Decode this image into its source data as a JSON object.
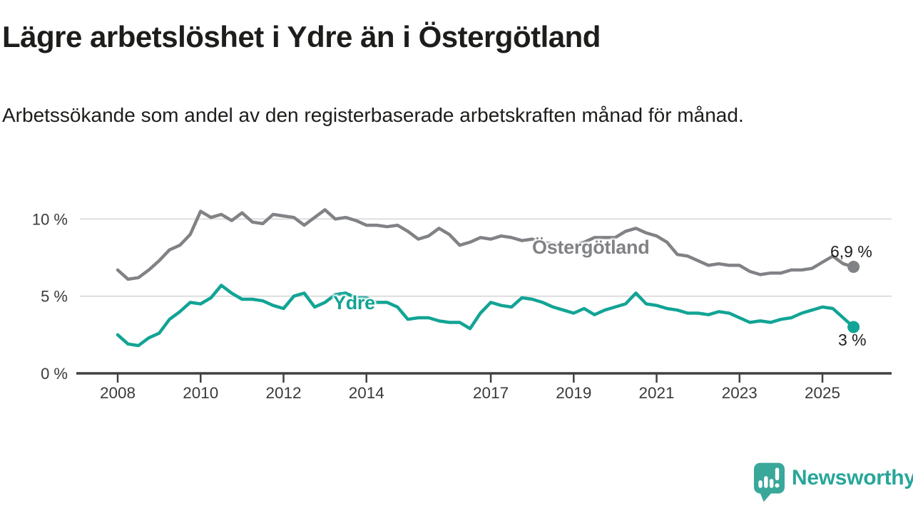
{
  "header": {
    "title": "Lägre arbetslöshet i Ydre än i Östergötland",
    "subtitle": "Arbetssökande som andel av den registerbaserade arbetskraften månad för månad."
  },
  "footer": {
    "logo_text": "Newsworthy"
  },
  "colors": {
    "ostergotland_line": "#808285",
    "ydre_line": "#12a495",
    "axis": "#414141",
    "grid": "#dedede",
    "tick_text": "#3a3a3a",
    "logo_teal": "#3aa79b"
  },
  "chart_data": {
    "type": "line",
    "title": "Lägre arbetslöshet i Ydre än i Östergötland",
    "xlabel": "",
    "ylabel": "Arbetssökande som andel av den registerbaserade arbetskraften",
    "unit": "%",
    "grid": "horizontal-only",
    "legend": "inline-labels-on-lines",
    "x_start": 2008.0,
    "x_step": 0.25,
    "xlim": [
      2007.0,
      2026.7
    ],
    "ylim": [
      0,
      11.5
    ],
    "x_ticks": [
      2008,
      2010,
      2012,
      2014,
      2017,
      2019,
      2021,
      2023,
      2025
    ],
    "x_tick_labels": [
      "2008",
      "2010",
      "2012",
      "2014",
      "2017",
      "2019",
      "2021",
      "2023",
      "2025"
    ],
    "y_ticks": [
      0,
      5,
      10
    ],
    "y_tick_labels": [
      "0 %",
      "5 %",
      "10 %"
    ],
    "series": [
      {
        "name": "Östergötland",
        "color": "#808285",
        "end_label": "6,9 %",
        "end_value": 6.9,
        "values": [
          6.7,
          6.1,
          6.2,
          6.7,
          7.3,
          8.0,
          8.3,
          9.0,
          10.5,
          10.1,
          10.3,
          9.9,
          10.4,
          9.8,
          9.7,
          10.3,
          10.2,
          10.1,
          9.6,
          10.1,
          10.6,
          10.0,
          10.1,
          9.9,
          9.6,
          9.6,
          9.5,
          9.6,
          9.2,
          8.7,
          8.9,
          9.4,
          9.0,
          8.3,
          8.5,
          8.8,
          8.7,
          8.9,
          8.8,
          8.6,
          8.7,
          8.5,
          8.4,
          8.3,
          8.3,
          8.5,
          8.8,
          8.8,
          8.8,
          9.2,
          9.4,
          9.1,
          8.9,
          8.5,
          7.7,
          7.6,
          7.3,
          7.0,
          7.1,
          7.0,
          7.0,
          6.6,
          6.4,
          6.5,
          6.5,
          6.7,
          6.7,
          6.8,
          7.2,
          7.6,
          7.1,
          6.9
        ]
      },
      {
        "name": "Ydre",
        "color": "#12a495",
        "end_label": "3 %",
        "end_value": 3.0,
        "values": [
          2.5,
          1.9,
          1.8,
          2.3,
          2.6,
          3.5,
          4.0,
          4.6,
          4.5,
          4.9,
          5.7,
          5.2,
          4.8,
          4.8,
          4.7,
          4.4,
          4.2,
          5.0,
          5.2,
          4.3,
          4.6,
          5.1,
          5.2,
          4.9,
          4.9,
          4.6,
          4.6,
          4.3,
          3.5,
          3.6,
          3.6,
          3.4,
          3.3,
          3.3,
          2.9,
          3.9,
          4.6,
          4.4,
          4.3,
          4.9,
          4.8,
          4.6,
          4.3,
          4.1,
          3.9,
          4.2,
          3.8,
          4.1,
          4.3,
          4.5,
          5.2,
          4.5,
          4.4,
          4.2,
          4.1,
          3.9,
          3.9,
          3.8,
          4.0,
          3.9,
          3.6,
          3.3,
          3.4,
          3.3,
          3.5,
          3.6,
          3.9,
          4.1,
          4.3,
          4.2,
          3.6,
          3.0
        ]
      }
    ]
  }
}
